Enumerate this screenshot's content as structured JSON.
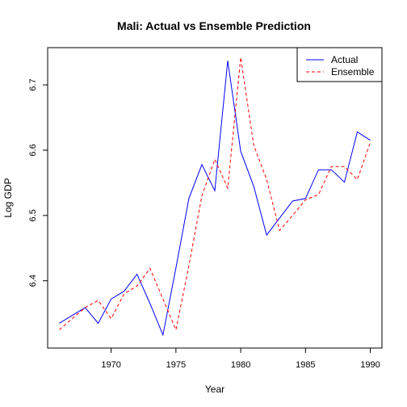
{
  "chart_data": {
    "type": "line",
    "title": "Mali: Actual vs Ensemble Prediction",
    "xlabel": "Year",
    "ylabel": "Log GDP",
    "xlim": [
      1965.1,
      1990.9
    ],
    "ylim": [
      6.297,
      6.757
    ],
    "x_ticks": [
      1970,
      1975,
      1980,
      1985,
      1990
    ],
    "y_ticks": [
      6.4,
      6.5,
      6.6,
      6.7
    ],
    "x_tick_labels": [
      "1970",
      "1975",
      "1980",
      "1985",
      "1990"
    ],
    "y_tick_labels": [
      "6.4",
      "6.5",
      "6.6",
      "6.7"
    ],
    "grid": false,
    "legend_position": "top-right",
    "x": [
      1966,
      1967,
      1968,
      1969,
      1970,
      1971,
      1972,
      1973,
      1974,
      1975,
      1976,
      1977,
      1978,
      1979,
      1980,
      1981,
      1982,
      1983,
      1984,
      1985,
      1986,
      1987,
      1988,
      1989,
      1990
    ],
    "series": [
      {
        "name": "Actual",
        "color": "#0000ff",
        "dash": "solid",
        "values": [
          6.335,
          6.347,
          6.359,
          6.335,
          6.372,
          6.384,
          6.41,
          6.365,
          6.317,
          6.42,
          6.526,
          6.578,
          6.538,
          6.737,
          6.598,
          6.545,
          6.47,
          6.496,
          6.522,
          6.526,
          6.57,
          6.57,
          6.551,
          6.628,
          6.615
        ]
      },
      {
        "name": "Ensemble",
        "color": "#ff0000",
        "dash": "dashed",
        "values": [
          6.325,
          6.342,
          6.359,
          6.37,
          6.342,
          6.38,
          6.392,
          6.419,
          6.372,
          6.325,
          6.423,
          6.53,
          6.586,
          6.542,
          6.742,
          6.608,
          6.555,
          6.477,
          6.5,
          6.524,
          6.532,
          6.575,
          6.575,
          6.555,
          6.612
        ]
      }
    ]
  }
}
